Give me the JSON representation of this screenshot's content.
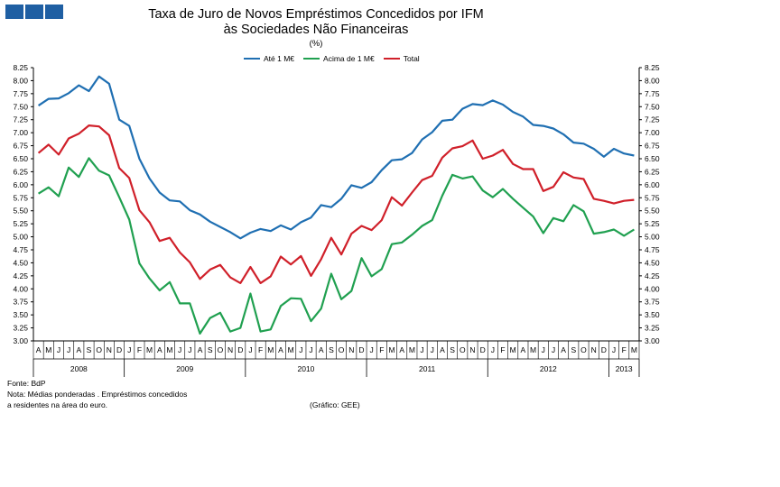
{
  "title_line1": "Taxa de Juro de Novos Empréstimos  Concedidos por IFM",
  "title_line2": "às Sociedades Não Financeiras",
  "unit": "(%)",
  "colors": {
    "ate1": "#1f6fb2",
    "acima1": "#20a050",
    "total": "#d0202a",
    "logo": "#1f5fa3"
  },
  "footnotes": {
    "fonte": "Fonte: BdP",
    "nota1": "Nota: Médias ponderadas . Empréstimos concedidos",
    "nota2": "a residentes na área do euro.",
    "grafico": "(Gráfico: GEE)"
  },
  "chart_data": {
    "type": "line",
    "title": "Taxa de Juro de Novos Empréstimos  Concedidos por IFM às Sociedades Não Financeiras",
    "ylabel": "(%)",
    "ylim": [
      3.0,
      8.25
    ],
    "yticks": [
      "3.00",
      "3.25",
      "3.50",
      "3.75",
      "4.00",
      "4.25",
      "4.50",
      "4.75",
      "5.00",
      "5.25",
      "5.50",
      "5.75",
      "6.00",
      "6.25",
      "6.50",
      "6.75",
      "7.00",
      "7.25",
      "7.50",
      "7.75",
      "8.00",
      "8.25"
    ],
    "legend_position": "top",
    "grid": false,
    "months": [
      "A",
      "M",
      "J",
      "J",
      "A",
      "S",
      "O",
      "N",
      "D",
      "J",
      "F",
      "M",
      "A",
      "M",
      "J",
      "J",
      "A",
      "S",
      "O",
      "N",
      "D",
      "J",
      "F",
      "M",
      "A",
      "M",
      "J",
      "J",
      "A",
      "S",
      "O",
      "N",
      "D",
      "J",
      "F",
      "M",
      "A",
      "M",
      "J",
      "J",
      "A",
      "S",
      "O",
      "N",
      "D",
      "J",
      "F",
      "M",
      "A",
      "M",
      "J",
      "J",
      "A",
      "S",
      "O",
      "N",
      "D",
      "J",
      "F",
      "M"
    ],
    "years": [
      {
        "label": "2008",
        "start": 0,
        "end": 9
      },
      {
        "label": "2009",
        "start": 9,
        "end": 21
      },
      {
        "label": "2010",
        "start": 21,
        "end": 33
      },
      {
        "label": "2011",
        "start": 33,
        "end": 45
      },
      {
        "label": "2012",
        "start": 45,
        "end": 57
      },
      {
        "label": "2013",
        "start": 57,
        "end": 60
      }
    ],
    "series": [
      {
        "name": "Até 1 M€",
        "color": "#1f6fb2",
        "values": [
          7.52,
          7.65,
          7.66,
          7.76,
          7.91,
          7.8,
          8.08,
          7.94,
          7.25,
          7.13,
          6.5,
          6.12,
          5.85,
          5.7,
          5.68,
          5.51,
          5.43,
          5.29,
          5.19,
          5.09,
          4.97,
          5.08,
          5.15,
          5.11,
          5.22,
          5.14,
          5.28,
          5.37,
          5.61,
          5.57,
          5.73,
          5.99,
          5.94,
          6.05,
          6.28,
          6.47,
          6.49,
          6.61,
          6.87,
          7.01,
          7.23,
          7.25,
          7.46,
          7.55,
          7.53,
          7.62,
          7.54,
          7.4,
          7.31,
          7.15,
          7.13,
          7.08,
          6.97,
          6.81,
          6.79,
          6.69,
          6.54,
          6.69,
          6.6,
          6.56
        ]
      },
      {
        "name": "Acima de 1 M€",
        "color": "#20a050",
        "values": [
          5.83,
          5.95,
          5.78,
          6.33,
          6.15,
          6.51,
          6.27,
          6.18,
          5.76,
          5.33,
          4.49,
          4.2,
          3.97,
          4.13,
          3.72,
          3.72,
          3.14,
          3.44,
          3.54,
          3.18,
          3.25,
          3.91,
          3.18,
          3.22,
          3.67,
          3.82,
          3.81,
          3.38,
          3.62,
          4.29,
          3.8,
          3.96,
          4.59,
          4.24,
          4.38,
          4.86,
          4.89,
          5.04,
          5.21,
          5.32,
          5.79,
          6.19,
          6.12,
          6.16,
          5.89,
          5.76,
          5.92,
          5.73,
          5.56,
          5.39,
          5.07,
          5.36,
          5.3,
          5.61,
          5.49,
          5.06,
          5.09,
          5.14,
          5.02,
          5.14
        ]
      },
      {
        "name": "Total",
        "color": "#d0202a",
        "values": [
          6.61,
          6.77,
          6.58,
          6.89,
          6.98,
          7.14,
          7.12,
          6.95,
          6.32,
          6.13,
          5.51,
          5.28,
          4.92,
          4.98,
          4.7,
          4.51,
          4.19,
          4.37,
          4.46,
          4.22,
          4.11,
          4.42,
          4.11,
          4.24,
          4.62,
          4.47,
          4.63,
          4.25,
          4.57,
          4.98,
          4.66,
          5.06,
          5.21,
          5.13,
          5.32,
          5.76,
          5.6,
          5.85,
          6.09,
          6.17,
          6.52,
          6.7,
          6.74,
          6.85,
          6.5,
          6.56,
          6.67,
          6.4,
          6.3,
          6.3,
          5.88,
          5.96,
          6.24,
          6.14,
          6.11,
          5.73,
          5.69,
          5.64,
          5.69,
          5.71
        ]
      }
    ]
  }
}
